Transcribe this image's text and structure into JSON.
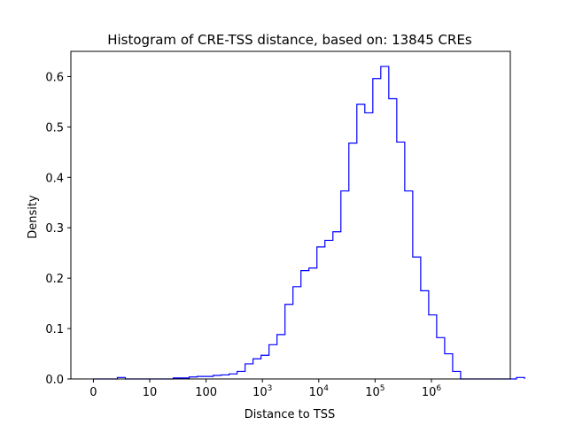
{
  "chart_data": {
    "type": "histogram",
    "title": "Histogram of CRE-TSS distance, based on: 13845 CREs",
    "xlabel": "Distance to TSS",
    "ylabel": "Density",
    "x_scale": "log (symlog-like, offset by 1)",
    "xlim_log10": [
      -0.4,
      7.4
    ],
    "ylim": [
      0,
      0.65
    ],
    "x_tick_labels": [
      {
        "pos": 0,
        "label": "0"
      },
      {
        "pos": 1,
        "label": "10"
      },
      {
        "pos": 2,
        "label": "100"
      },
      {
        "pos": 3,
        "base": "10",
        "exp": "3"
      },
      {
        "pos": 4,
        "base": "10",
        "exp": "4"
      },
      {
        "pos": 5,
        "base": "10",
        "exp": "5"
      },
      {
        "pos": 6,
        "base": "10",
        "exp": "6"
      }
    ],
    "y_ticks": [
      0.0,
      0.1,
      0.2,
      0.3,
      0.4,
      0.5,
      0.6
    ],
    "y_tick_labels": [
      "0.0",
      "0.1",
      "0.2",
      "0.3",
      "0.4",
      "0.5",
      "0.6"
    ],
    "bin_start_log10": 0.0,
    "bin_width_log10": 0.1417,
    "densities": [
      0.0,
      0.0,
      0.0,
      0.003,
      0.0,
      0.0,
      0.0,
      0.0,
      0.0,
      0.0,
      0.002,
      0.002,
      0.004,
      0.005,
      0.005,
      0.007,
      0.008,
      0.01,
      0.015,
      0.03,
      0.04,
      0.047,
      0.068,
      0.088,
      0.148,
      0.183,
      0.215,
      0.22,
      0.262,
      0.275,
      0.292,
      0.373,
      0.468,
      0.545,
      0.528,
      0.596,
      0.62,
      0.556,
      0.47,
      0.373,
      0.242,
      0.175,
      0.127,
      0.082,
      0.05,
      0.015,
      0.0,
      0.0,
      0.0,
      0.0,
      0.0,
      0.0,
      0.0,
      0.003
    ],
    "series_color": "#0000ff",
    "grid": false
  }
}
